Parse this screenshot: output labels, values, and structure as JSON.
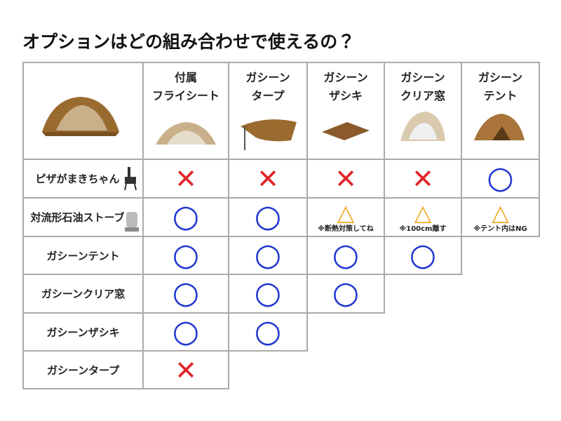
{
  "title": "オプションはどの組み合わせで使えるの？",
  "table": {
    "columns": [
      [
        "付属",
        "フライシート"
      ],
      [
        "ガシーン",
        "タープ"
      ],
      [
        "ガシーン",
        "ザシキ"
      ],
      [
        "ガシーン",
        "クリア窓"
      ],
      [
        "ガシーン",
        "テント"
      ]
    ],
    "rows": [
      {
        "label": "ピザがまきちゃん",
        "cells": [
          {
            "symbol": "✕"
          },
          {
            "symbol": "✕"
          },
          {
            "symbol": "✕"
          },
          {
            "symbol": "✕"
          },
          {
            "symbol": "○"
          }
        ]
      },
      {
        "label": "対流形石油ストーブ",
        "cells": [
          {
            "symbol": "○"
          },
          {
            "symbol": "○"
          },
          {
            "symbol": "△",
            "note": "※断熱対策してね"
          },
          {
            "symbol": "△",
            "note": "※100cm離す"
          },
          {
            "symbol": "△",
            "note": "※テント内はNG"
          }
        ]
      },
      {
        "label": "ガシーンテント",
        "cells": [
          {
            "symbol": "○"
          },
          {
            "symbol": "○"
          },
          {
            "symbol": "○"
          },
          {
            "symbol": "○"
          }
        ]
      },
      {
        "label": "ガシーンクリア窓",
        "cells": [
          {
            "symbol": "○"
          },
          {
            "symbol": "○"
          },
          {
            "symbol": "○"
          }
        ]
      },
      {
        "label": "ガシーンザシキ",
        "cells": [
          {
            "symbol": "○"
          },
          {
            "symbol": "○"
          }
        ]
      },
      {
        "label": "ガシーンタープ",
        "cells": [
          {
            "symbol": "✕"
          }
        ]
      }
    ]
  }
}
